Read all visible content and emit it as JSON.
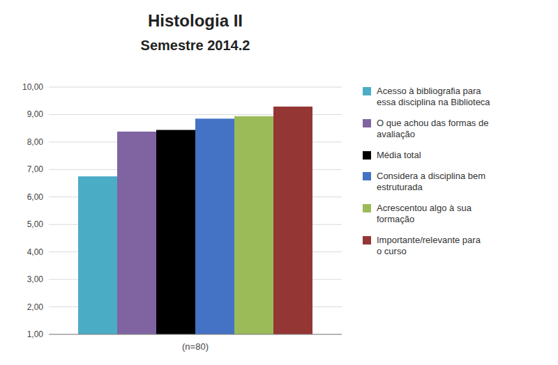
{
  "chart_data": {
    "type": "bar",
    "title": "Histologia II",
    "subtitle": "Semestre 2014.2",
    "categories": [
      "(n=80)"
    ],
    "series": [
      {
        "name": "Acesso à bibliografia para\nessa disciplina na Biblioteca",
        "color": "#4bacc6",
        "values": [
          6.75
        ]
      },
      {
        "name": "O que achou das formas de\navaliação",
        "color": "#8064a2",
        "values": [
          8.38
        ]
      },
      {
        "name": "Média total",
        "color": "#000000",
        "values": [
          8.44
        ]
      },
      {
        "name": "Considera a disciplina bem\nestruturada",
        "color": "#4472c4",
        "values": [
          8.85
        ]
      },
      {
        "name": "Acrescentou algo à sua\nformação",
        "color": "#9bbb59",
        "values": [
          8.94
        ]
      },
      {
        "name": "Importante/relevante para\no curso",
        "color": "#943634",
        "values": [
          9.29
        ]
      }
    ],
    "ylim": [
      1.0,
      10.0
    ],
    "yticks": [
      {
        "value": 1.0,
        "label": "1,00"
      },
      {
        "value": 2.0,
        "label": "2,00"
      },
      {
        "value": 3.0,
        "label": "3,00"
      },
      {
        "value": 4.0,
        "label": "4,00"
      },
      {
        "value": 5.0,
        "label": "5,00"
      },
      {
        "value": 6.0,
        "label": "6,00"
      },
      {
        "value": 7.0,
        "label": "7,00"
      },
      {
        "value": 8.0,
        "label": "8,00"
      },
      {
        "value": 9.0,
        "label": "9,00"
      },
      {
        "value": 10.0,
        "label": "10,00"
      }
    ],
    "grid": true,
    "legend": "right"
  }
}
